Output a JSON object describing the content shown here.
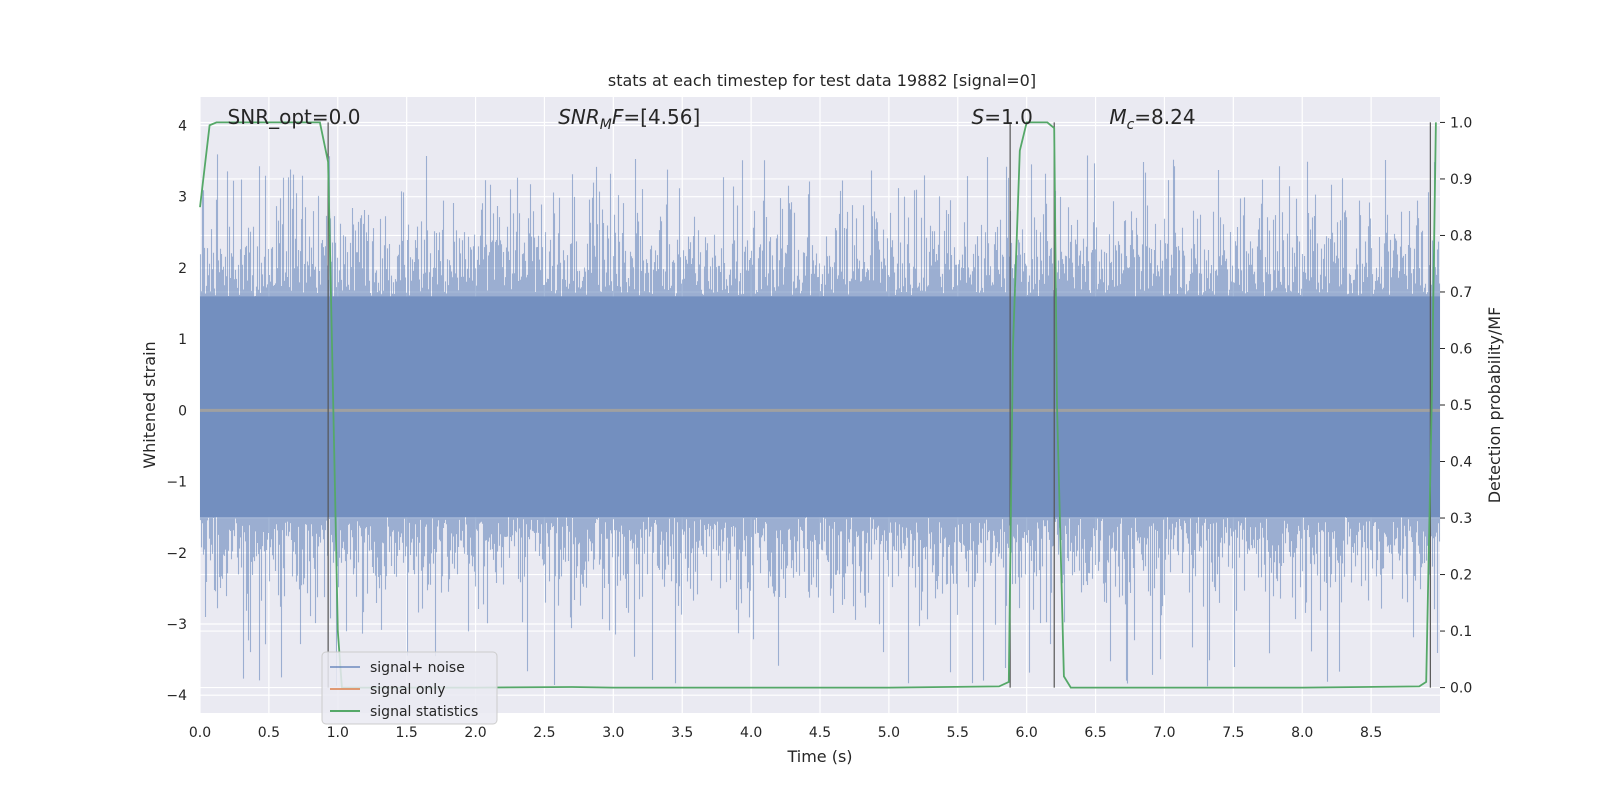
{
  "chart_data": {
    "type": "line",
    "title": "stats at each timestep for test data 19882 [signal=0]",
    "xlabel": "Time (s)",
    "ylabel": "Whitened strain",
    "y2label": "Detection probability/MF",
    "xlim": [
      0.0,
      9.0
    ],
    "ylim": [
      -4.25,
      4.4
    ],
    "y2lim": [
      -0.045,
      1.045
    ],
    "xticks": [
      "0.0",
      "0.5",
      "1.0",
      "1.5",
      "2.0",
      "2.5",
      "3.0",
      "3.5",
      "4.0",
      "4.5",
      "5.0",
      "5.5",
      "6.0",
      "6.5",
      "7.0",
      "7.5",
      "8.0",
      "8.5"
    ],
    "yticks": [
      "4",
      "3",
      "2",
      "1",
      "0",
      "−1",
      "−2",
      "−3",
      "−4"
    ],
    "y2ticks": [
      "1.0",
      "0.9",
      "0.8",
      "0.7",
      "0.6",
      "0.5",
      "0.4",
      "0.3",
      "0.2",
      "0.1",
      "0.0"
    ],
    "annotations": [
      {
        "text": "SNR_opt=0.0",
        "x": 0.2
      },
      {
        "text": "SNR_MF=[4.56]",
        "x": 2.6
      },
      {
        "text": "S=1.0",
        "x": 5.6
      },
      {
        "text": "M_c=8.24",
        "x": 6.6
      }
    ],
    "series": [
      {
        "name": "signal+ noise",
        "color": "#4c72b0",
        "axis": "left",
        "noise_envelope": {
          "typical_band": [
            -1.5,
            1.6
          ],
          "peak_max": 3.6,
          "peak_min": -3.9
        }
      },
      {
        "name": "signal only",
        "color": "#dd8452",
        "axis": "left",
        "x": [
          0.0,
          9.0
        ],
        "y": [
          0.0,
          0.0
        ]
      },
      {
        "name": "signal statistics",
        "color": "#55a868",
        "axis": "right",
        "x": [
          0.0,
          0.07,
          0.12,
          0.2,
          0.5,
          0.7,
          0.87,
          0.93,
          0.95,
          0.98,
          1.0,
          1.03,
          1.5,
          2.0,
          2.7,
          3.0,
          4.0,
          5.0,
          5.8,
          5.87,
          5.9,
          5.95,
          6.0,
          6.15,
          6.2,
          6.22,
          6.27,
          6.32,
          7.0,
          8.0,
          8.85,
          8.9,
          8.94,
          8.97
        ],
        "y": [
          0.85,
          0.995,
          1.0,
          1.0,
          1.0,
          1.0,
          1.0,
          0.93,
          0.7,
          0.35,
          0.1,
          0.0,
          0.0,
          0.0,
          0.001,
          0.0,
          0.0,
          0.0,
          0.002,
          0.01,
          0.6,
          0.95,
          1.0,
          1.0,
          0.99,
          0.5,
          0.02,
          0.0,
          0.0,
          0.0,
          0.002,
          0.01,
          0.5,
          1.0
        ]
      }
    ],
    "vlines": [
      0.93,
      5.88,
      6.2,
      8.93
    ],
    "legend": {
      "placement": "lower-left",
      "entries": [
        "signal+ noise",
        "signal only",
        "signal statistics"
      ]
    },
    "grid": true
  }
}
